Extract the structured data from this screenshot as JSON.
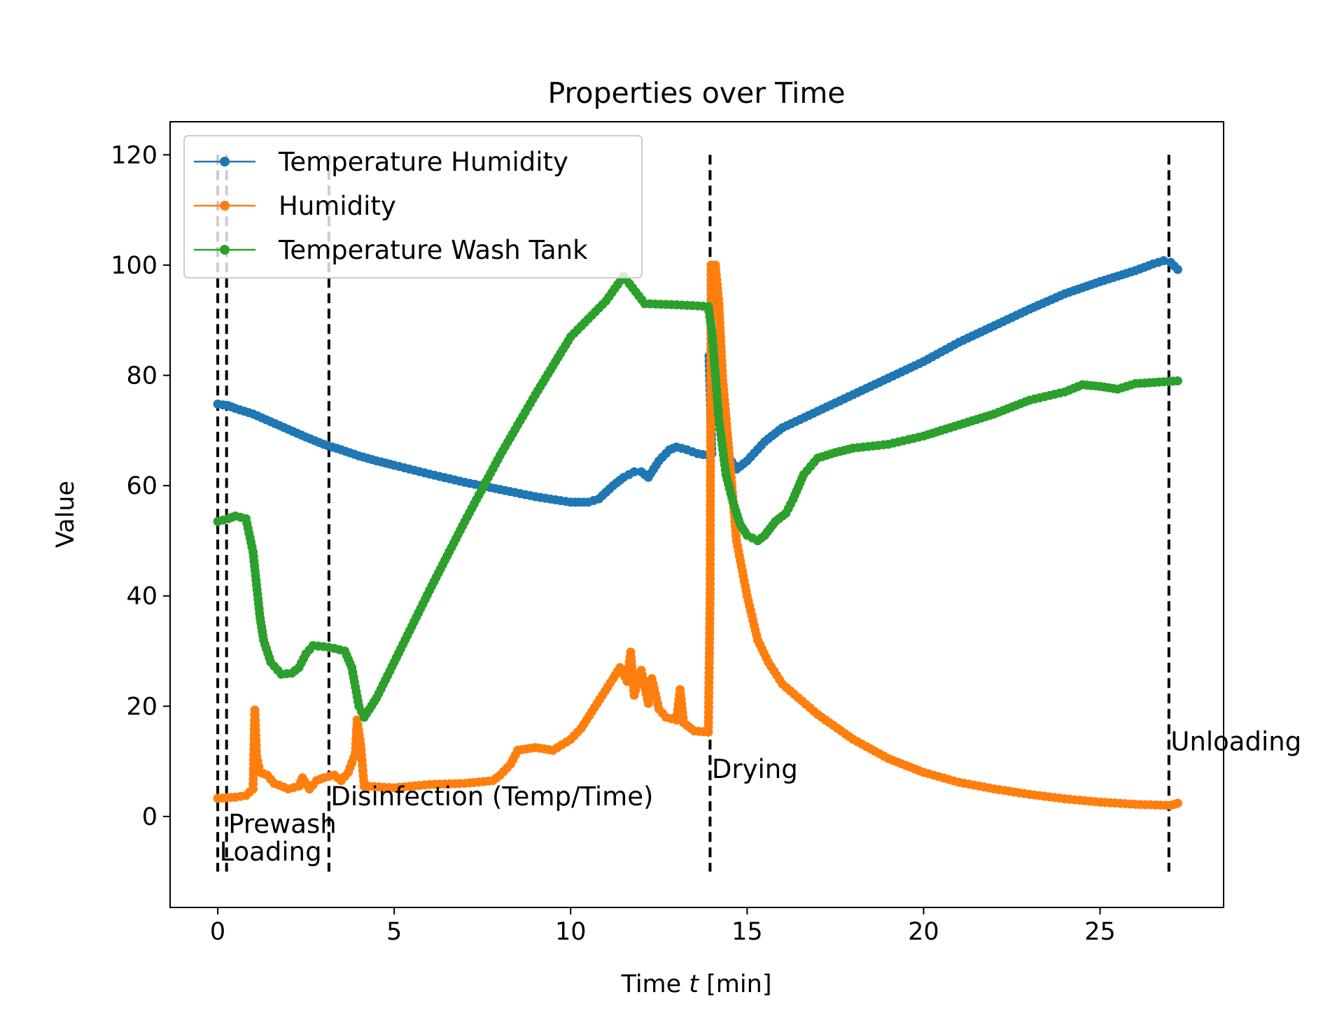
{
  "chart_data": {
    "type": "line",
    "title": "Properties over Time",
    "xlabel_prefix": "Time ",
    "xlabel_var": "t",
    "xlabel_suffix": " [min]",
    "ylabel": "Value",
    "xlim": [
      -1.35,
      28.5
    ],
    "ylim": [
      -16.5,
      126
    ],
    "xticks": [
      0,
      5,
      10,
      15,
      20,
      25
    ],
    "yticks": [
      0,
      20,
      40,
      60,
      80,
      100,
      120
    ],
    "grid": false,
    "legend_position": "top-left",
    "series": [
      {
        "name": "Temperature Humidity",
        "color": "#1f77b4",
        "points": [
          [
            0.0,
            74.8
          ],
          [
            0.3,
            74.5
          ],
          [
            0.5,
            74.0
          ],
          [
            1.0,
            73.0
          ],
          [
            1.5,
            71.6
          ],
          [
            2.0,
            70.2
          ],
          [
            2.5,
            68.8
          ],
          [
            3.0,
            67.5
          ],
          [
            3.5,
            66.5
          ],
          [
            4.0,
            65.4
          ],
          [
            4.5,
            64.5
          ],
          [
            5.0,
            63.7
          ],
          [
            6.0,
            62.1
          ],
          [
            7.0,
            60.6
          ],
          [
            8.0,
            59.3
          ],
          [
            9.0,
            58.0
          ],
          [
            10.0,
            57.0
          ],
          [
            10.5,
            57.0
          ],
          [
            10.8,
            57.6
          ],
          [
            11.2,
            60.0
          ],
          [
            11.5,
            61.5
          ],
          [
            11.8,
            62.5
          ],
          [
            12.0,
            62.5
          ],
          [
            12.2,
            61.5
          ],
          [
            12.5,
            64.5
          ],
          [
            12.8,
            66.5
          ],
          [
            13.0,
            67.0
          ],
          [
            13.3,
            66.5
          ],
          [
            13.6,
            65.8
          ],
          [
            13.9,
            65.5
          ],
          [
            14.0,
            65.8
          ],
          [
            13.92,
            83.5
          ],
          [
            14.1,
            78.0
          ],
          [
            14.3,
            70.0
          ],
          [
            14.5,
            65.0
          ],
          [
            14.7,
            63.0
          ],
          [
            15.0,
            64.5
          ],
          [
            15.5,
            68.0
          ],
          [
            16.0,
            70.5
          ],
          [
            17.0,
            73.5
          ],
          [
            18.0,
            76.5
          ],
          [
            19.0,
            79.5
          ],
          [
            20.0,
            82.5
          ],
          [
            21.0,
            86.0
          ],
          [
            22.0,
            89.0
          ],
          [
            23.0,
            92.0
          ],
          [
            24.0,
            94.8
          ],
          [
            25.0,
            97.0
          ],
          [
            26.0,
            99.0
          ],
          [
            26.5,
            100.2
          ],
          [
            26.8,
            100.8
          ],
          [
            27.0,
            100.5
          ],
          [
            27.2,
            99.2
          ]
        ]
      },
      {
        "name": "Humidity",
        "color": "#ff7f0e",
        "points": [
          [
            0.0,
            3.3
          ],
          [
            0.5,
            3.5
          ],
          [
            0.8,
            3.8
          ],
          [
            1.0,
            5.0
          ],
          [
            1.05,
            19.3
          ],
          [
            1.1,
            11.0
          ],
          [
            1.2,
            8.0
          ],
          [
            1.4,
            7.5
          ],
          [
            1.6,
            6.0
          ],
          [
            2.0,
            5.0
          ],
          [
            2.3,
            5.5
          ],
          [
            2.4,
            7.0
          ],
          [
            2.6,
            5.0
          ],
          [
            2.8,
            6.5
          ],
          [
            3.0,
            7.0
          ],
          [
            3.3,
            7.5
          ],
          [
            3.5,
            6.5
          ],
          [
            3.7,
            8.0
          ],
          [
            3.9,
            11.5
          ],
          [
            3.95,
            17.5
          ],
          [
            4.05,
            13.0
          ],
          [
            4.15,
            5.5
          ],
          [
            5.0,
            5.2
          ],
          [
            6.0,
            5.8
          ],
          [
            7.0,
            6.0
          ],
          [
            7.8,
            6.5
          ],
          [
            8.0,
            7.5
          ],
          [
            8.3,
            9.5
          ],
          [
            8.5,
            12.0
          ],
          [
            9.0,
            12.5
          ],
          [
            9.5,
            12.0
          ],
          [
            10.0,
            14.0
          ],
          [
            10.3,
            16.0
          ],
          [
            10.6,
            19.0
          ],
          [
            10.9,
            22.0
          ],
          [
            11.2,
            25.0
          ],
          [
            11.4,
            27.0
          ],
          [
            11.6,
            24.5
          ],
          [
            11.7,
            29.8
          ],
          [
            11.8,
            22.0
          ],
          [
            12.0,
            26.5
          ],
          [
            12.2,
            20.5
          ],
          [
            12.3,
            25.0
          ],
          [
            12.5,
            19.5
          ],
          [
            12.7,
            18.0
          ],
          [
            13.0,
            17.5
          ],
          [
            13.1,
            23.0
          ],
          [
            13.2,
            17.0
          ],
          [
            13.5,
            15.5
          ],
          [
            13.9,
            15.3
          ],
          [
            13.95,
            39.5
          ],
          [
            13.98,
            100.0
          ],
          [
            14.1,
            100.0
          ],
          [
            14.2,
            93.0
          ],
          [
            14.3,
            80.0
          ],
          [
            14.5,
            65.0
          ],
          [
            14.7,
            50.0
          ],
          [
            15.0,
            40.0
          ],
          [
            15.3,
            32.0
          ],
          [
            15.6,
            28.0
          ],
          [
            16.0,
            24.0
          ],
          [
            17.0,
            18.5
          ],
          [
            18.0,
            14.0
          ],
          [
            19.0,
            10.5
          ],
          [
            20.0,
            8.0
          ],
          [
            21.0,
            6.2
          ],
          [
            22.0,
            5.0
          ],
          [
            23.0,
            4.0
          ],
          [
            24.0,
            3.2
          ],
          [
            25.0,
            2.6
          ],
          [
            26.0,
            2.2
          ],
          [
            27.0,
            2.0
          ],
          [
            27.2,
            2.4
          ]
        ]
      },
      {
        "name": "Temperature Wash Tank",
        "color": "#2ca02c",
        "points": [
          [
            0.0,
            53.5
          ],
          [
            0.3,
            54.0
          ],
          [
            0.5,
            54.5
          ],
          [
            0.8,
            54.0
          ],
          [
            1.0,
            48.0
          ],
          [
            1.1,
            42.0
          ],
          [
            1.2,
            36.0
          ],
          [
            1.3,
            32.0
          ],
          [
            1.5,
            28.0
          ],
          [
            1.8,
            25.8
          ],
          [
            2.1,
            26.0
          ],
          [
            2.3,
            27.0
          ],
          [
            2.5,
            29.5
          ],
          [
            2.7,
            31.0
          ],
          [
            3.0,
            30.8
          ],
          [
            3.3,
            30.5
          ],
          [
            3.6,
            30.0
          ],
          [
            3.8,
            27.0
          ],
          [
            4.0,
            20.0
          ],
          [
            4.15,
            18.0
          ],
          [
            4.5,
            21.5
          ],
          [
            5.0,
            28.0
          ],
          [
            6.0,
            41.0
          ],
          [
            7.0,
            53.5
          ],
          [
            8.0,
            65.5
          ],
          [
            9.0,
            76.5
          ],
          [
            10.0,
            87.0
          ],
          [
            11.0,
            93.5
          ],
          [
            11.5,
            98.0
          ],
          [
            12.1,
            93.0
          ],
          [
            13.0,
            92.8
          ],
          [
            13.9,
            92.5
          ],
          [
            14.0,
            88.0
          ],
          [
            14.1,
            80.0
          ],
          [
            14.2,
            72.0
          ],
          [
            14.4,
            62.0
          ],
          [
            14.6,
            57.0
          ],
          [
            14.8,
            53.0
          ],
          [
            15.0,
            51.0
          ],
          [
            15.3,
            50.0
          ],
          [
            15.5,
            51.0
          ],
          [
            15.8,
            53.5
          ],
          [
            16.1,
            55.0
          ],
          [
            16.3,
            57.5
          ],
          [
            16.6,
            62.0
          ],
          [
            17.0,
            65.0
          ],
          [
            17.5,
            66.0
          ],
          [
            18.0,
            66.8
          ],
          [
            19.0,
            67.5
          ],
          [
            20.0,
            69.0
          ],
          [
            21.0,
            71.0
          ],
          [
            22.0,
            73.0
          ],
          [
            23.0,
            75.5
          ],
          [
            24.0,
            77.0
          ],
          [
            24.5,
            78.3
          ],
          [
            25.0,
            78.0
          ],
          [
            25.5,
            77.5
          ],
          [
            26.0,
            78.5
          ],
          [
            27.2,
            79.0
          ]
        ]
      }
    ],
    "phases": [
      {
        "x": 0.0,
        "label": "Loading",
        "label_x": 0.05,
        "label_y": -8.0
      },
      {
        "x": 0.25,
        "label": "Prewash",
        "label_x": 0.3,
        "label_y": -3.0
      },
      {
        "x": 3.15,
        "label": "Disinfection (Temp/Time)",
        "label_x": 3.2,
        "label_y": 2.0
      },
      {
        "x": 13.95,
        "label": "Drying",
        "label_x": 14.0,
        "label_y": 7.0
      },
      {
        "x": 26.95,
        "label": "Unloading",
        "label_x": 27.0,
        "label_y": 12.0
      }
    ]
  }
}
